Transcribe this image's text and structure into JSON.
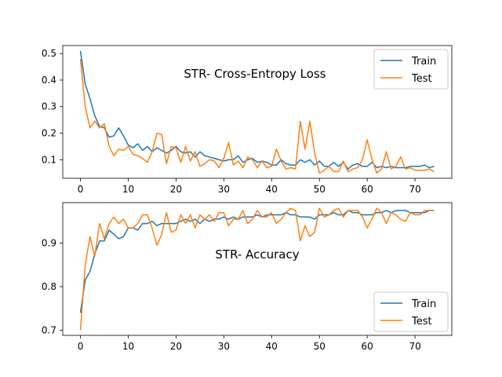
{
  "colors": {
    "train": "#1f77b4",
    "test": "#ff7f0e",
    "axis": "#000000",
    "legend_border": "#cccccc"
  },
  "chart_data": [
    {
      "type": "line",
      "title": "STR- Cross-Entropy Loss",
      "xlabel": "",
      "ylabel": "",
      "xlim": [
        -3.7,
        77.7
      ],
      "ylim": [
        0.03,
        0.53
      ],
      "xticks": [
        0,
        10,
        20,
        30,
        40,
        50,
        60,
        70
      ],
      "yticks": [
        0.1,
        0.2,
        0.3,
        0.4,
        0.5
      ],
      "ytick_labels": [
        "0.1",
        "0.2",
        "0.3",
        "0.4",
        "0.5"
      ],
      "grid": false,
      "legend_position": "top-right",
      "x_start": 0,
      "series": [
        {
          "name": "Train",
          "color": "#1f77b4",
          "values": [
            0.51,
            0.385,
            0.33,
            0.265,
            0.225,
            0.22,
            0.185,
            0.19,
            0.22,
            0.19,
            0.155,
            0.145,
            0.16,
            0.135,
            0.15,
            0.13,
            0.145,
            0.135,
            0.125,
            0.135,
            0.15,
            0.13,
            0.125,
            0.13,
            0.11,
            0.13,
            0.115,
            0.11,
            0.105,
            0.1,
            0.095,
            0.1,
            0.1,
            0.115,
            0.09,
            0.1,
            0.105,
            0.09,
            0.095,
            0.09,
            0.08,
            0.08,
            0.1,
            0.085,
            0.08,
            0.08,
            0.1,
            0.09,
            0.1,
            0.08,
            0.095,
            0.075,
            0.075,
            0.09,
            0.075,
            0.09,
            0.065,
            0.08,
            0.085,
            0.075,
            0.075,
            0.09,
            0.07,
            0.075,
            0.07,
            0.075,
            0.07,
            0.07,
            0.07,
            0.075,
            0.075,
            0.075,
            0.08,
            0.07,
            0.075
          ]
        },
        {
          "name": "Test",
          "color": "#ff7f0e",
          "values": [
            0.48,
            0.3,
            0.22,
            0.245,
            0.22,
            0.235,
            0.15,
            0.115,
            0.14,
            0.135,
            0.15,
            0.12,
            0.115,
            0.105,
            0.09,
            0.13,
            0.2,
            0.195,
            0.085,
            0.15,
            0.145,
            0.09,
            0.15,
            0.095,
            0.13,
            0.075,
            0.085,
            0.1,
            0.095,
            0.07,
            0.105,
            0.165,
            0.08,
            0.095,
            0.07,
            0.11,
            0.1,
            0.07,
            0.095,
            0.07,
            0.075,
            0.14,
            0.095,
            0.065,
            0.07,
            0.065,
            0.245,
            0.14,
            0.245,
            0.125,
            0.05,
            0.06,
            0.075,
            0.055,
            0.055,
            0.095,
            0.055,
            0.065,
            0.07,
            0.1,
            0.175,
            0.1,
            0.05,
            0.065,
            0.13,
            0.065,
            0.075,
            0.11,
            0.065,
            0.07,
            0.06,
            0.06,
            0.06,
            0.065,
            0.055
          ]
        }
      ]
    },
    {
      "type": "line",
      "title": "STR- Accuracy",
      "xlabel": "",
      "ylabel": "",
      "xlim": [
        -3.7,
        77.7
      ],
      "ylim": [
        0.688,
        0.993
      ],
      "xticks": [
        0,
        10,
        20,
        30,
        40,
        50,
        60,
        70
      ],
      "yticks": [
        0.7,
        0.8,
        0.9
      ],
      "ytick_labels": [
        "0.7",
        "0.8",
        "0.9"
      ],
      "grid": false,
      "legend_position": "bottom-right",
      "x_start": 0,
      "series": [
        {
          "name": "Train",
          "color": "#1f77b4",
          "values": [
            0.74,
            0.815,
            0.835,
            0.875,
            0.905,
            0.905,
            0.93,
            0.92,
            0.91,
            0.915,
            0.935,
            0.935,
            0.93,
            0.945,
            0.945,
            0.95,
            0.94,
            0.945,
            0.945,
            0.945,
            0.945,
            0.95,
            0.955,
            0.95,
            0.955,
            0.945,
            0.955,
            0.95,
            0.955,
            0.955,
            0.96,
            0.955,
            0.96,
            0.955,
            0.96,
            0.96,
            0.96,
            0.965,
            0.96,
            0.965,
            0.965,
            0.965,
            0.965,
            0.97,
            0.965,
            0.965,
            0.96,
            0.96,
            0.96,
            0.955,
            0.965,
            0.965,
            0.965,
            0.97,
            0.965,
            0.965,
            0.975,
            0.97,
            0.97,
            0.965,
            0.965,
            0.965,
            0.97,
            0.97,
            0.975,
            0.97,
            0.975,
            0.975,
            0.975,
            0.97,
            0.97,
            0.97,
            0.97,
            0.975,
            0.975
          ]
        },
        {
          "name": "Test",
          "color": "#ff7f0e",
          "values": [
            0.7,
            0.85,
            0.915,
            0.87,
            0.945,
            0.91,
            0.945,
            0.96,
            0.945,
            0.955,
            0.935,
            0.935,
            0.945,
            0.965,
            0.965,
            0.935,
            0.895,
            0.92,
            0.97,
            0.925,
            0.93,
            0.965,
            0.945,
            0.965,
            0.935,
            0.965,
            0.955,
            0.965,
            0.95,
            0.97,
            0.97,
            0.94,
            0.955,
            0.955,
            0.975,
            0.945,
            0.955,
            0.975,
            0.96,
            0.96,
            0.97,
            0.945,
            0.955,
            0.97,
            0.98,
            0.975,
            0.905,
            0.94,
            0.915,
            0.925,
            0.98,
            0.96,
            0.965,
            0.975,
            0.98,
            0.96,
            0.975,
            0.975,
            0.975,
            0.96,
            0.935,
            0.955,
            0.98,
            0.97,
            0.945,
            0.97,
            0.965,
            0.955,
            0.95,
            0.97,
            0.965,
            0.965,
            0.975,
            0.975,
            0.975
          ]
        }
      ]
    }
  ]
}
